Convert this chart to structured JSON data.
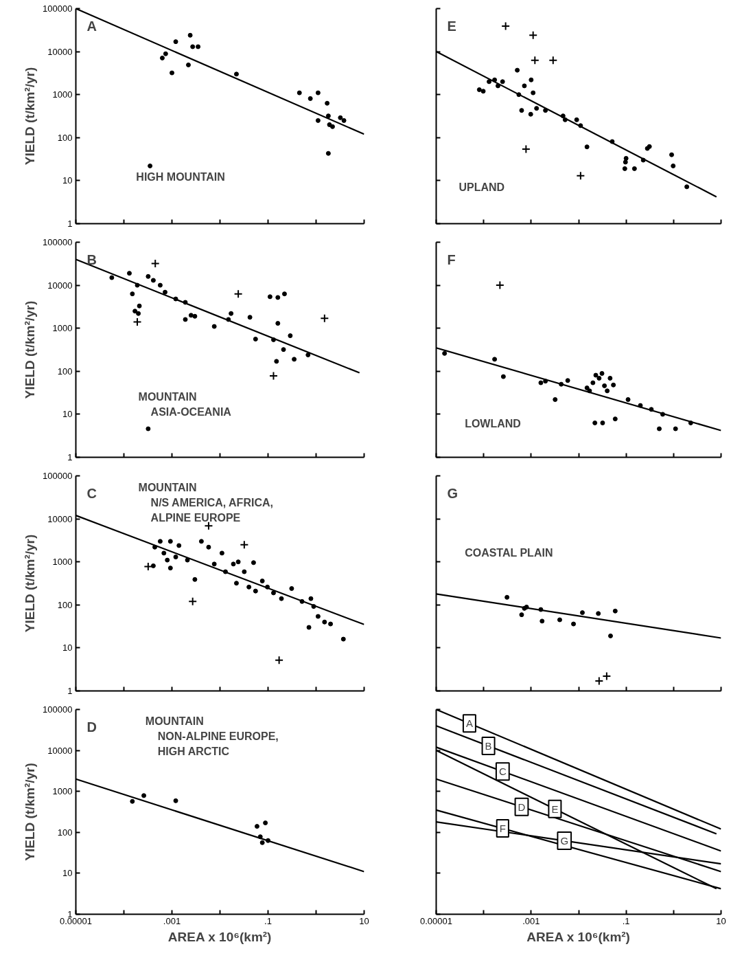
{
  "chart_data": [
    {
      "type": "scatter",
      "title": "A",
      "subtitle": "HIGH MOUNTAIN",
      "ylabel": "YIELD (t/km²/yr)",
      "log": "xy",
      "tick_labels": "y",
      "xlim": [
        1e-05,
        10
      ],
      "ylim": [
        1,
        100000
      ],
      "xticks": [
        {
          "value": 1e-05,
          "label": null
        },
        {
          "value": 0.0001,
          "label": null
        },
        {
          "value": 0.001,
          "label": null
        },
        {
          "value": 0.01,
          "label": null
        },
        {
          "value": 0.1,
          "label": null
        },
        {
          "value": 1,
          "label": null
        },
        {
          "value": 10,
          "label": null
        }
      ],
      "yticks": [
        1,
        10,
        100,
        1000,
        10000,
        100000
      ],
      "series": [
        {
          "color": "#000000",
          "marker": "circle",
          "x": [
            0.00035,
            0.00063,
            0.00074,
            0.001,
            0.0012,
            0.0022,
            0.0024,
            0.0027,
            0.0035,
            0.022,
            0.45,
            0.76,
            1.1,
            1.1,
            1.7,
            1.8,
            1.9,
            3.2,
            1.8,
            2.2,
            3.8
          ],
          "values": [
            22,
            7100,
            8900,
            3200,
            17000,
            4900,
            24000,
            13000,
            13000,
            3000,
            1100,
            810,
            1100,
            250,
            630,
            320,
            200,
            290,
            43,
            180,
            250
          ]
        },
        {
          "type": "line",
          "color": "#000000",
          "x": [
            1e-05,
            10
          ],
          "values": [
            100000,
            120
          ]
        }
      ]
    },
    {
      "type": "scatter",
      "title": "E",
      "subtitle": "UPLAND",
      "log": "xy",
      "tick_labels": false,
      "xlim": [
        1e-05,
        10
      ],
      "ylim": [
        1,
        100000
      ],
      "xticks": [
        {
          "value": 1e-05,
          "label": null
        },
        {
          "value": 0.0001,
          "label": null
        },
        {
          "value": 0.001,
          "label": null
        },
        {
          "value": 0.01,
          "label": null
        },
        {
          "value": 0.1,
          "label": null
        },
        {
          "value": 1,
          "label": null
        },
        {
          "value": 10,
          "label": null
        }
      ],
      "yticks": [
        1,
        10,
        100,
        1000,
        10000,
        100000
      ],
      "series": [
        {
          "color": "#000000",
          "marker": "circle",
          "x": [
            8.1e-05,
            9.8e-05,
            0.00013,
            0.00017,
            0.0002,
            0.00025,
            0.00051,
            0.00055,
            0.00063,
            0.00072,
            0.00098,
            0.001,
            0.0011,
            0.0013,
            0.002,
            0.0047,
            0.0052,
            0.0091,
            0.011,
            0.015,
            0.051,
            0.097,
            0.094,
            0.1,
            0.15,
            0.23,
            0.28,
            0.31,
            0.91,
            0.98,
            1.9
          ],
          "values": [
            1300,
            1200,
            2000,
            2200,
            1600,
            2000,
            3700,
            1000,
            430,
            1600,
            350,
            2200,
            1100,
            480,
            430,
            320,
            260,
            260,
            190,
            61,
            81,
            27,
            19,
            33,
            19,
            30,
            56,
            62,
            40,
            22,
            7.2
          ]
        },
        {
          "color": "#000000",
          "marker": "cross",
          "x": [
            0.00029,
            0.0011,
            0.0012,
            0.0029,
            0.00078,
            0.011
          ],
          "values": [
            39000,
            24000,
            6300,
            6300,
            54,
            13
          ]
        },
        {
          "type": "line",
          "color": "#000000",
          "x": [
            1e-05,
            8
          ],
          "values": [
            10000,
            4.2
          ]
        }
      ]
    },
    {
      "type": "scatter",
      "title": "B",
      "subtitle": "MOUNTAIN\nASIA-OCEANIA",
      "ylabel": "YIELD (t/km²/yr)",
      "log": "xy",
      "tick_labels": "y",
      "xlim": [
        1e-05,
        10
      ],
      "ylim": [
        1,
        100000
      ],
      "xticks": [
        {
          "value": 1e-05,
          "label": null
        },
        {
          "value": 0.0001,
          "label": null
        },
        {
          "value": 0.001,
          "label": null
        },
        {
          "value": 0.01,
          "label": null
        },
        {
          "value": 0.1,
          "label": null
        },
        {
          "value": 1,
          "label": null
        },
        {
          "value": 10,
          "label": null
        }
      ],
      "yticks": [
        1,
        10,
        100,
        1000,
        10000,
        100000
      ],
      "series": [
        {
          "color": "#000000",
          "marker": "circle",
          "x": [
            5.6e-05,
            0.00013,
            0.00015,
            0.00019,
            0.00017,
            0.00021,
            0.0002,
            0.00032,
            0.00041,
            0.00057,
            0.00072,
            0.0012,
            0.0019,
            0.0019,
            0.0025,
            0.003,
            0.0076,
            0.015,
            0.017,
            0.042,
            0.055,
            0.11,
            0.16,
            0.16,
            0.13,
            0.22,
            0.21,
            0.29,
            0.15,
            0.35,
            0.68,
            0.00032
          ],
          "values": [
            15000,
            19000,
            6300,
            10000,
            2500,
            3300,
            2200,
            16000,
            13000,
            10000,
            6900,
            4800,
            4000,
            1600,
            2000,
            1900,
            1100,
            1600,
            2200,
            1800,
            560,
            5400,
            5200,
            1300,
            540,
            6300,
            320,
            670,
            170,
            190,
            240,
            4.6
          ]
        },
        {
          "color": "#000000",
          "marker": "cross",
          "x": [
            0.00045,
            0.00019,
            0.024,
            0.13,
            1.5
          ],
          "values": [
            32000,
            1400,
            6300,
            78,
            1700
          ]
        },
        {
          "type": "line",
          "color": "#000000",
          "x": [
            1e-05,
            8
          ],
          "values": [
            40000,
            92
          ]
        }
      ]
    },
    {
      "type": "scatter",
      "title": "F",
      "subtitle": "LOWLAND",
      "log": "xy",
      "tick_labels": false,
      "xlim": [
        1e-05,
        10
      ],
      "ylim": [
        1,
        100000
      ],
      "xticks": [
        {
          "value": 1e-05,
          "label": null
        },
        {
          "value": 0.0001,
          "label": null
        },
        {
          "value": 0.001,
          "label": null
        },
        {
          "value": 0.01,
          "label": null
        },
        {
          "value": 0.1,
          "label": null
        },
        {
          "value": 1,
          "label": null
        },
        {
          "value": 10,
          "label": null
        }
      ],
      "yticks": [
        1,
        10,
        100,
        1000,
        10000,
        100000
      ],
      "series": [
        {
          "color": "#000000",
          "marker": "circle",
          "x": [
            1.5e-05,
            0.00017,
            0.00026,
            0.0016,
            0.002,
            0.0043,
            0.0059,
            0.0032,
            0.015,
            0.017,
            0.02,
            0.023,
            0.027,
            0.031,
            0.035,
            0.04,
            0.046,
            0.054,
            0.022,
            0.032,
            0.059,
            0.11,
            0.2,
            0.34,
            0.5,
            0.59,
            1.1,
            2.3
          ],
          "values": [
            260,
            190,
            75,
            54,
            59,
            50,
            61,
            22,
            41,
            35,
            54,
            81,
            69,
            89,
            46,
            35,
            69,
            48,
            6.3,
            6.3,
            7.8,
            22,
            16,
            13,
            4.6,
            10,
            4.6,
            6.3
          ]
        },
        {
          "color": "#000000",
          "marker": "cross",
          "x": [
            0.00022
          ],
          "values": [
            10000
          ]
        },
        {
          "type": "line",
          "color": "#000000",
          "x": [
            1e-05,
            10
          ],
          "values": [
            350,
            4.2
          ]
        }
      ]
    },
    {
      "type": "scatter",
      "title": "C",
      "subtitle": "MOUNTAIN\nN/S AMERICA, AFRICA,\nALPINE EUROPE",
      "ylabel": "YIELD (t/km²/yr)",
      "log": "xy",
      "tick_labels": "y",
      "xlim": [
        1e-05,
        10
      ],
      "ylim": [
        1,
        100000
      ],
      "xticks": [
        {
          "value": 1e-05,
          "label": null
        },
        {
          "value": 0.0001,
          "label": null
        },
        {
          "value": 0.001,
          "label": null
        },
        {
          "value": 0.01,
          "label": null
        },
        {
          "value": 0.1,
          "label": null
        },
        {
          "value": 1,
          "label": null
        },
        {
          "value": 10,
          "label": null
        }
      ],
      "yticks": [
        1,
        10,
        100,
        1000,
        10000,
        100000
      ],
      "series": [
        {
          "color": "#000000",
          "marker": "circle",
          "x": [
            0.00041,
            0.00044,
            0.00057,
            0.00068,
            0.0008,
            0.00093,
            0.0012,
            0.0014,
            0.00093,
            0.0021,
            0.003,
            0.0041,
            0.0058,
            0.0076,
            0.011,
            0.013,
            0.019,
            0.022,
            0.024,
            0.032,
            0.04,
            0.05,
            0.055,
            0.076,
            0.097,
            0.13,
            0.19,
            0.31,
            0.51,
            0.78,
            0.89,
            0.71,
            1.1,
            1.5,
            2.0,
            3.7
          ],
          "values": [
            810,
            2200,
            3000,
            1600,
            1100,
            3000,
            1300,
            2400,
            720,
            1100,
            390,
            3000,
            2200,
            890,
            1600,
            590,
            890,
            320,
            1000,
            590,
            260,
            960,
            210,
            360,
            260,
            190,
            140,
            240,
            120,
            140,
            92,
            30,
            54,
            40,
            36,
            16
          ]
        },
        {
          "color": "#000000",
          "marker": "cross",
          "x": [
            0.00032,
            0.0058,
            0.032,
            0.0027,
            0.17
          ],
          "values": [
            780,
            6900,
            2500,
            120,
            5.2
          ]
        },
        {
          "type": "line",
          "color": "#000000",
          "x": [
            1e-05,
            10
          ],
          "values": [
            12000,
            35
          ]
        }
      ]
    },
    {
      "type": "scatter",
      "title": "G",
      "subtitle": "COASTAL PLAIN",
      "log": "xy",
      "tick_labels": false,
      "xlim": [
        1e-05,
        10
      ],
      "ylim": [
        1,
        100000
      ],
      "xticks": [
        {
          "value": 1e-05,
          "label": null
        },
        {
          "value": 0.0001,
          "label": null
        },
        {
          "value": 0.001,
          "label": null
        },
        {
          "value": 0.01,
          "label": null
        },
        {
          "value": 0.1,
          "label": null
        },
        {
          "value": 1,
          "label": null
        },
        {
          "value": 10,
          "label": null
        }
      ],
      "yticks": [
        1,
        10,
        100,
        1000,
        10000,
        100000
      ],
      "series": [
        {
          "color": "#000000",
          "marker": "circle",
          "x": [
            0.00031,
            0.00063,
            0.00072,
            0.0008,
            0.0016,
            0.0017,
            0.004,
            0.0078,
            0.012,
            0.026,
            0.047,
            0.059
          ],
          "values": [
            150,
            59,
            83,
            89,
            78,
            42,
            45,
            36,
            66,
            63,
            19,
            72
          ]
        },
        {
          "color": "#000000",
          "marker": "cross",
          "x": [
            0.027,
            0.039
          ],
          "values": [
            1.7,
            2.2
          ]
        },
        {
          "type": "line",
          "color": "#000000",
          "x": [
            1e-05,
            10
          ],
          "values": [
            180,
            17
          ]
        }
      ]
    },
    {
      "type": "scatter",
      "title": "D",
      "subtitle": "MOUNTAIN\nNON-ALPINE EUROPE,\nHIGH ARCTIC",
      "xlabel": "AREA x 10⁶(km²)",
      "ylabel": "YIELD (t/km²/yr)",
      "log": "xy",
      "xlim": [
        1e-05,
        10
      ],
      "ylim": [
        1,
        100000
      ],
      "xticks": [
        {
          "value": 1e-05,
          "label": "0.00001"
        },
        {
          "value": 0.0001,
          "label": null
        },
        {
          "value": 0.001,
          "label": ".001"
        },
        {
          "value": 0.01,
          "label": null
        },
        {
          "value": 0.1,
          "label": ".1"
        },
        {
          "value": 1,
          "label": null
        },
        {
          "value": 10,
          "label": "10"
        }
      ],
      "yticks": [
        1,
        10,
        100,
        1000,
        10000,
        100000
      ],
      "series": [
        {
          "color": "#000000",
          "marker": "circle",
          "x": [
            0.00015,
            0.00026,
            0.0012,
            0.059,
            0.088,
            0.069,
            0.076,
            0.1
          ],
          "values": [
            570,
            790,
            590,
            140,
            170,
            78,
            56,
            63
          ]
        },
        {
          "type": "line",
          "color": "#000000",
          "x": [
            1e-05,
            10
          ],
          "values": [
            2000,
            11
          ]
        }
      ]
    },
    {
      "type": "line",
      "xlabel": "AREA x 10⁶(km²)",
      "log": "xy",
      "tick_labels": "x",
      "xlim": [
        1e-05,
        10
      ],
      "ylim": [
        1,
        100000
      ],
      "xticks": [
        {
          "value": 1e-05,
          "label": "0.00001"
        },
        {
          "value": 0.0001,
          "label": null
        },
        {
          "value": 0.001,
          "label": ".001"
        },
        {
          "value": 0.01,
          "label": null
        },
        {
          "value": 0.1,
          "label": ".1"
        },
        {
          "value": 1,
          "label": null
        },
        {
          "value": 10,
          "label": "10"
        }
      ],
      "yticks": [
        1,
        10,
        100,
        1000,
        10000,
        100000
      ],
      "series": [
        {
          "name": "A",
          "color": "#000000",
          "x": [
            1e-05,
            10
          ],
          "values": [
            100000,
            120
          ]
        },
        {
          "name": "B",
          "color": "#000000",
          "x": [
            1e-05,
            8
          ],
          "values": [
            40000,
            92
          ]
        },
        {
          "name": "C",
          "color": "#000000",
          "x": [
            1e-05,
            10
          ],
          "values": [
            12000,
            35
          ]
        },
        {
          "name": "D",
          "color": "#000000",
          "x": [
            1e-05,
            10
          ],
          "values": [
            2000,
            11
          ]
        },
        {
          "name": "E",
          "color": "#000000",
          "x": [
            1e-05,
            8
          ],
          "values": [
            10000,
            4.2
          ]
        },
        {
          "name": "F",
          "color": "#000000",
          "x": [
            1e-05,
            10
          ],
          "values": [
            350,
            4.2
          ]
        },
        {
          "name": "G",
          "color": "#000000",
          "x": [
            1e-05,
            10
          ],
          "values": [
            180,
            17
          ]
        }
      ]
    }
  ]
}
